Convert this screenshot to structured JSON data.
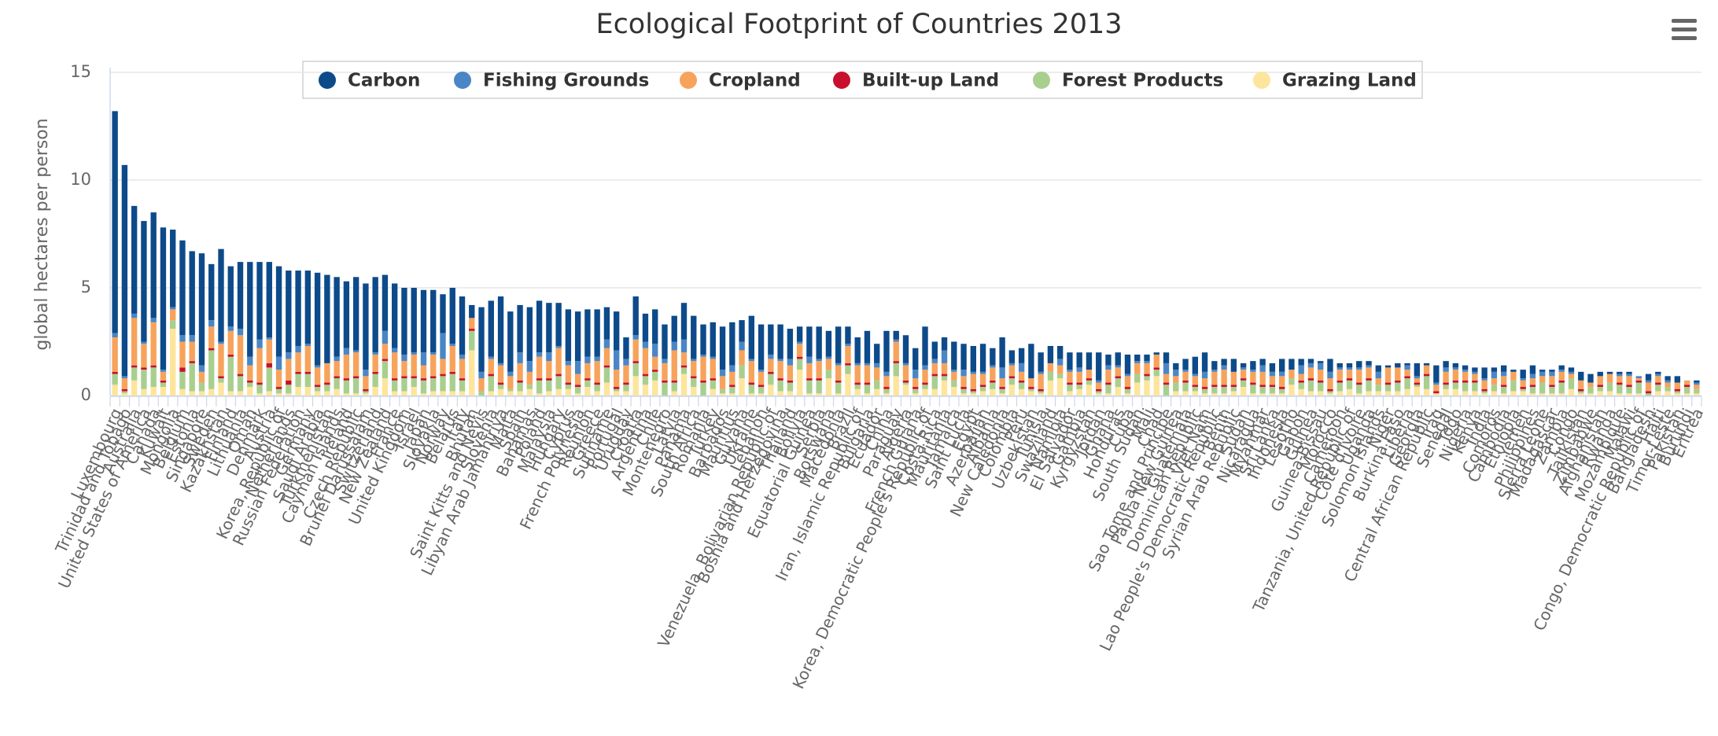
{
  "chart_data": {
    "type": "stacked_bar",
    "title": "Ecological Footprint of Countries 2013",
    "y_label": "global hectares per person",
    "ylim": [
      0,
      15
    ],
    "yticks": [
      0,
      5,
      10,
      15
    ],
    "grid": true,
    "categories": [
      "Luxembourg",
      "Trinidad and Tobago",
      "Australia",
      "United States of America",
      "Canada",
      "Kuwait",
      "Mongolia",
      "Belgium",
      "Estonia",
      "Singapore",
      "Sweden",
      "Kazakhstan",
      "Finland",
      "Lithuania",
      "Oman",
      "Denmark",
      "Austria",
      "Korea, Republic of",
      "Netherlands",
      "Russian Federation",
      "Germany",
      "Saudi Arabia",
      "Turkmenistan",
      "Cayman Islands",
      "Ireland",
      "Czech Republic",
      "Brunei Darussalam",
      "Switzerland",
      "New Zealand",
      "France",
      "United Kingdom",
      "Israel",
      "Japan",
      "Slovakia",
      "Norway",
      "Belarus",
      "Italy",
      "Bhutan",
      "Saint Kitts and Nevis",
      "Slovenia",
      "Libyan Arab Jamahiriya",
      "Malta",
      "Spain",
      "Bahamas",
      "Poland",
      "Malaysia",
      "Hungary",
      "Cyprus",
      "French Polynesia",
      "Reunion",
      "Greece",
      "Suriname",
      "Portugal",
      "Uruguay",
      "Croatia",
      "Argentina",
      "Chile",
      "Montenegro",
      "Latvia",
      "Panama",
      "South Africa",
      "Romania",
      "Turkey",
      "Barbados",
      "Mauritius",
      "Guyana",
      "Ukraine",
      "Lebanon",
      "Venezuela, Bolivarian Republic of",
      "Bosnia and Herzegovina",
      "Thailand",
      "Bolivia",
      "Equatorial Guinea",
      "Serbia",
      "Botswana",
      "Macedonia",
      "Brazil",
      "Iran, Islamic Republic of",
      "Bulgaria",
      "Ecuador",
      "China",
      "Paraguay",
      "Algeria",
      "French Guiana",
      "Korea, Democratic People's Republic of",
      "Costa Rica",
      "Mauritania",
      "Jamaica",
      "Saint Lucia",
      "Egypt",
      "Azerbaijan",
      "Albania",
      "New Caledonia",
      "Colombia",
      "Peru",
      "Uzbekistan",
      "Tunisia",
      "Swaziland",
      "Namibia",
      "El Salvador",
      "Gambia",
      "Kyrgyzstan",
      "Jordan",
      "Ghana",
      "Honduras",
      "Cuba",
      "South Sudan",
      "Mali",
      "Chad",
      "Sao Tome and Principe",
      "Papua New Guinea",
      "Guatemala",
      "Dominican Republic",
      "Viet Nam",
      "Lao People's Democratic Republic",
      "Benin",
      "Syrian Arab Republic",
      "Sudan",
      "Nicaragua",
      "Myanmar",
      "Sri Lanka",
      "Indonesia",
      "Lesotho",
      "Gabon",
      "Guinea",
      "Guinea-Bissau",
      "Morocco",
      "Cameroon",
      "Tanzania, United Republic of",
      "Côte d'Ivoire",
      "Uganda",
      "Solomon Islands",
      "Niger",
      "Burkina Faso",
      "Liberia",
      "Georgia",
      "Central African Republic",
      "Iraq",
      "Senegal",
      "Togo",
      "Nigeria",
      "Kenya",
      "India",
      "Comoros",
      "Cambodia",
      "Ethiopia",
      "Yemen",
      "Philippines",
      "Sierra Leone",
      "Madagascar",
      "Zambia",
      "Congo",
      "Tajikistan",
      "Zimbabwe",
      "Afghanistan",
      "Rwanda",
      "Mozambique",
      "Malawi",
      "Congo, Democratic Republic of",
      "Bangladesh",
      "Haiti",
      "Timor-Leste",
      "Pakistan",
      "Burundi",
      "Eritrea"
    ],
    "series": [
      {
        "name": "Carbon",
        "color": "#0d4a8a",
        "values": [
          10.3,
          9.8,
          5.0,
          5.6,
          4.9,
          6.6,
          3.6,
          4.4,
          3.9,
          5.2,
          2.6,
          4.3,
          2.8,
          3.1,
          4.4,
          3.6,
          3.5,
          4.2,
          3.8,
          3.5,
          3.4,
          4.3,
          4.1,
          3.7,
          3.1,
          3.4,
          4.0,
          3.5,
          2.6,
          3.0,
          3.1,
          3.0,
          2.9,
          2.9,
          1.8,
          2.6,
          2.7,
          0.6,
          3.0,
          2.6,
          3.1,
          2.8,
          2.2,
          2.5,
          2.4,
          2.3,
          2.0,
          2.4,
          2.3,
          2.2,
          2.2,
          1.5,
          1.8,
          1.0,
          1.8,
          1.3,
          1.6,
          1.6,
          1.2,
          1.7,
          2.0,
          1.4,
          1.6,
          2.0,
          2.0,
          1.0,
          2.0,
          2.1,
          1.4,
          1.6,
          1.4,
          0.7,
          1.4,
          1.5,
          1.2,
          1.7,
          0.8,
          1.2,
          1.5,
          0.9,
          1.9,
          0.4,
          1.3,
          1.0,
          1.8,
          0.8,
          0.6,
          1.3,
          1.2,
          1.2,
          1.3,
          0.8,
          1.4,
          0.6,
          0.7,
          1.6,
          0.9,
          0.8,
          0.6,
          0.8,
          0.7,
          0.8,
          1.3,
          0.5,
          0.6,
          0.9,
          0.3,
          0.3,
          0.1,
          0.5,
          0.3,
          0.5,
          0.8,
          0.9,
          0.4,
          0.3,
          0.6,
          0.2,
          0.4,
          0.3,
          0.4,
          0.6,
          0.5,
          0.3,
          0.2,
          0.1,
          0.6,
          0.2,
          0.2,
          0.3,
          0.2,
          0.3,
          0.1,
          0.2,
          0.1,
          0.6,
          0.1,
          0.8,
          0.3,
          0.2,
          0.2,
          0.2,
          0.5,
          0.2,
          0.3,
          0.1,
          0.4,
          0.4,
          0.1,
          0.1,
          0.2,
          0.2,
          0.4,
          0.4,
          0.2,
          0.1,
          0.1,
          0.1,
          0.0,
          0.3,
          0.1,
          0.2,
          0.3,
          0.0,
          0.1
        ]
      },
      {
        "name": "Fishing Grounds",
        "color": "#4a86c5",
        "values": [
          0.2,
          0.1,
          0.2,
          0.1,
          0.2,
          0.1,
          0.1,
          0.3,
          0.3,
          0.3,
          0.3,
          0.1,
          0.2,
          0.3,
          0.4,
          0.4,
          0.1,
          0.6,
          0.3,
          0.3,
          0.1,
          0.1,
          0.0,
          0.2,
          0.3,
          0.1,
          0.3,
          0.1,
          0.6,
          0.2,
          0.3,
          0.1,
          0.6,
          0.1,
          1.2,
          0.1,
          0.2,
          0.0,
          0.3,
          0.1,
          0.1,
          0.2,
          0.5,
          0.5,
          0.2,
          0.4,
          0.1,
          0.2,
          0.6,
          0.3,
          0.2,
          0.4,
          0.9,
          0.3,
          0.2,
          0.3,
          0.6,
          0.2,
          0.4,
          0.6,
          0.1,
          0.1,
          0.1,
          0.3,
          0.3,
          0.4,
          0.1,
          0.1,
          0.2,
          0.1,
          0.3,
          0.1,
          0.3,
          0.1,
          0.1,
          0.1,
          0.1,
          0.1,
          0.1,
          0.2,
          0.2,
          0.1,
          0.1,
          0.4,
          0.2,
          0.2,
          0.6,
          0.1,
          0.3,
          0.1,
          0.1,
          0.1,
          0.5,
          0.1,
          0.4,
          0.0,
          0.1,
          0.0,
          0.3,
          0.1,
          0.2,
          0.0,
          0.1,
          0.2,
          0.1,
          0.1,
          0.1,
          0.1,
          0.0,
          0.5,
          0.3,
          0.1,
          0.1,
          0.3,
          0.1,
          0.2,
          0.0,
          0.1,
          0.1,
          0.3,
          0.2,
          0.2,
          0.0,
          0.4,
          0.2,
          0.3,
          0.3,
          0.1,
          0.1,
          0.1,
          0.1,
          0.3,
          0.0,
          0.0,
          0.2,
          0.1,
          0.0,
          0.1,
          0.2,
          0.1,
          0.1,
          0.1,
          0.1,
          0.3,
          0.2,
          0.0,
          0.1,
          0.2,
          0.2,
          0.2,
          0.1,
          0.1,
          0.0,
          0.0,
          0.0,
          0.0,
          0.1,
          0.1,
          0.1,
          0.1,
          0.1,
          0.1,
          0.0,
          0.0,
          0.1
        ]
      },
      {
        "name": "Cropland",
        "color": "#f7a35c",
        "values": [
          1.6,
          0.5,
          2.2,
          1.1,
          2.0,
          0.4,
          0.5,
          1.2,
          0.9,
          0.5,
          1.0,
          1.5,
          1.1,
          1.8,
          0.7,
          1.6,
          1.1,
          0.8,
          1.0,
          0.9,
          1.2,
          0.8,
          0.9,
          0.7,
          1.1,
          1.1,
          0.6,
          0.8,
          0.7,
          1.2,
          0.7,
          1.0,
          0.6,
          1.0,
          0.7,
          1.2,
          0.9,
          0.5,
          0.6,
          0.7,
          0.8,
          0.6,
          0.8,
          0.6,
          1.0,
          0.8,
          1.2,
          0.8,
          0.5,
          0.7,
          1.0,
          0.8,
          0.8,
          0.8,
          1.0,
          1.2,
          0.6,
          0.8,
          1.4,
          0.6,
          0.7,
          1.1,
          0.9,
          0.6,
          0.6,
          0.7,
          1.0,
          0.6,
          0.6,
          0.8,
          0.7,
          0.6,
          0.7,
          0.8,
          0.5,
          0.7,
          0.8,
          0.8,
          0.8,
          0.6,
          0.5,
          0.9,
          0.7,
          0.4,
          0.6,
          0.5,
          0.5,
          0.4,
          0.5,
          0.7,
          0.5,
          0.6,
          0.4,
          0.5,
          0.4,
          0.4,
          0.7,
          0.4,
          0.4,
          0.5,
          0.5,
          0.4,
          0.3,
          0.6,
          0.4,
          0.5,
          0.5,
          0.5,
          0.6,
          0.4,
          0.3,
          0.4,
          0.4,
          0.4,
          0.6,
          0.7,
          0.6,
          0.4,
          0.5,
          0.6,
          0.4,
          0.5,
          0.4,
          0.3,
          0.5,
          0.5,
          0.5,
          0.5,
          0.4,
          0.6,
          0.5,
          0.3,
          0.7,
          0.6,
          0.3,
          0.2,
          0.4,
          0.3,
          0.5,
          0.5,
          0.4,
          0.3,
          0.4,
          0.3,
          0.4,
          0.4,
          0.3,
          0.3,
          0.3,
          0.4,
          0.4,
          0.2,
          0.4,
          0.2,
          0.4,
          0.4,
          0.3,
          0.4,
          0.1,
          0.4,
          0.3,
          0.2,
          0.3,
          0.2,
          0.2
        ]
      },
      {
        "name": "Built-up Land",
        "color": "#c8102e",
        "values": [
          0.1,
          0.1,
          0.1,
          0.1,
          0.1,
          0.1,
          0.0,
          0.2,
          0.1,
          0.0,
          0.1,
          0.1,
          0.1,
          0.1,
          0.1,
          0.1,
          0.2,
          0.1,
          0.2,
          0.1,
          0.1,
          0.1,
          0.1,
          0.1,
          0.1,
          0.1,
          0.1,
          0.1,
          0.1,
          0.1,
          0.1,
          0.1,
          0.1,
          0.1,
          0.1,
          0.1,
          0.1,
          0.1,
          0.0,
          0.1,
          0.1,
          0.0,
          0.1,
          0.0,
          0.1,
          0.1,
          0.1,
          0.1,
          0.1,
          0.1,
          0.1,
          0.1,
          0.1,
          0.1,
          0.1,
          0.1,
          0.1,
          0.1,
          0.1,
          0.1,
          0.1,
          0.1,
          0.1,
          0.0,
          0.1,
          0.0,
          0.1,
          0.1,
          0.1,
          0.1,
          0.1,
          0.1,
          0.1,
          0.1,
          0.0,
          0.1,
          0.1,
          0.1,
          0.1,
          0.0,
          0.1,
          0.1,
          0.1,
          0.1,
          0.1,
          0.1,
          0.1,
          0.0,
          0.1,
          0.1,
          0.1,
          0.1,
          0.1,
          0.1,
          0.1,
          0.1,
          0.1,
          0.0,
          0.0,
          0.1,
          0.1,
          0.1,
          0.1,
          0.1,
          0.1,
          0.1,
          0.0,
          0.1,
          0.1,
          0.1,
          0.0,
          0.1,
          0.1,
          0.1,
          0.1,
          0.1,
          0.1,
          0.1,
          0.1,
          0.1,
          0.1,
          0.1,
          0.0,
          0.1,
          0.1,
          0.1,
          0.1,
          0.1,
          0.1,
          0.1,
          0.1,
          0.0,
          0.1,
          0.1,
          0.1,
          0.1,
          0.1,
          0.1,
          0.1,
          0.1,
          0.1,
          0.1,
          0.1,
          0.0,
          0.1,
          0.0,
          0.1,
          0.1,
          0.0,
          0.1,
          0.1,
          0.0,
          0.1,
          0.0,
          0.1,
          0.0,
          0.1,
          0.1,
          0.1,
          0.1,
          0.1,
          0.0,
          0.1,
          0.1,
          0.0
        ]
      },
      {
        "name": "Forest Products",
        "color": "#a9cf8f",
        "values": [
          0.5,
          0.1,
          0.6,
          0.9,
          0.9,
          0.2,
          0.4,
          0.8,
          1.3,
          0.4,
          1.8,
          0.2,
          1.6,
          0.7,
          0.2,
          0.4,
          1.1,
          0.2,
          0.4,
          0.6,
          0.6,
          0.2,
          0.3,
          0.5,
          0.6,
          0.7,
          0.1,
          0.6,
          0.8,
          0.5,
          0.6,
          0.4,
          0.6,
          0.6,
          0.7,
          0.8,
          0.5,
          0.9,
          0.2,
          0.7,
          0.2,
          0.1,
          0.4,
          0.2,
          0.6,
          0.5,
          0.6,
          0.2,
          0.3,
          0.3,
          0.3,
          0.7,
          0.1,
          0.3,
          0.6,
          0.4,
          0.4,
          0.6,
          0.4,
          0.3,
          0.4,
          0.6,
          0.4,
          0.2,
          0.3,
          0.6,
          0.4,
          0.3,
          0.5,
          0.5,
          0.4,
          0.5,
          0.6,
          0.6,
          0.4,
          0.5,
          0.4,
          0.2,
          0.4,
          0.4,
          0.2,
          0.6,
          0.1,
          0.2,
          0.2,
          0.6,
          0.2,
          0.3,
          0.2,
          0.1,
          0.2,
          0.3,
          0.2,
          0.3,
          0.3,
          0.1,
          0.1,
          0.4,
          0.2,
          0.3,
          0.2,
          0.2,
          0.1,
          0.4,
          0.4,
          0.2,
          0.4,
          0.2,
          0.3,
          0.5,
          0.4,
          0.4,
          0.2,
          0.2,
          0.3,
          0.3,
          0.2,
          0.3,
          0.4,
          0.3,
          0.3,
          0.2,
          0.3,
          0.3,
          0.5,
          0.4,
          0.1,
          0.4,
          0.4,
          0.4,
          0.5,
          0.3,
          0.3,
          0.4,
          0.5,
          0.1,
          0.6,
          0.0,
          0.2,
          0.3,
          0.4,
          0.4,
          0.1,
          0.3,
          0.3,
          0.5,
          0.1,
          0.3,
          0.5,
          0.3,
          0.5,
          0.5,
          0.1,
          0.3,
          0.2,
          0.4,
          0.4,
          0.3,
          0.5,
          0.1,
          0.3,
          0.2,
          0.1,
          0.3,
          0.2
        ]
      },
      {
        "name": "Grazing Land",
        "color": "#fde59c",
        "values": [
          0.5,
          0.1,
          0.7,
          0.3,
          0.4,
          0.4,
          3.1,
          0.3,
          0.2,
          0.2,
          0.3,
          0.6,
          0.2,
          0.2,
          0.4,
          0.1,
          0.2,
          0.1,
          0.1,
          0.4,
          0.4,
          0.2,
          0.2,
          0.3,
          0.1,
          0.1,
          0.1,
          0.4,
          0.8,
          0.2,
          0.2,
          0.4,
          0.1,
          0.2,
          0.2,
          0.2,
          0.2,
          2.1,
          0.0,
          0.2,
          0.3,
          0.2,
          0.2,
          0.3,
          0.1,
          0.2,
          0.3,
          0.3,
          0.1,
          0.4,
          0.2,
          0.6,
          0.2,
          0.2,
          0.9,
          0.5,
          0.7,
          0.0,
          0.2,
          1.0,
          0.4,
          0.0,
          0.3,
          0.1,
          0.1,
          0.8,
          0.1,
          0.1,
          0.5,
          0.2,
          0.2,
          1.2,
          0.1,
          0.1,
          0.8,
          0.1,
          1.0,
          0.3,
          0.1,
          0.3,
          0.1,
          0.9,
          0.5,
          0.1,
          0.3,
          0.3,
          0.7,
          0.4,
          0.1,
          0.1,
          0.2,
          0.3,
          0.1,
          0.5,
          0.3,
          0.2,
          0.1,
          0.7,
          0.8,
          0.2,
          0.3,
          0.5,
          0.1,
          0.1,
          0.4,
          0.1,
          0.6,
          0.7,
          0.9,
          0.0,
          0.2,
          0.2,
          0.2,
          0.1,
          0.1,
          0.1,
          0.2,
          0.4,
          0.1,
          0.1,
          0.1,
          0.1,
          0.5,
          0.3,
          0.2,
          0.2,
          0.1,
          0.2,
          0.3,
          0.1,
          0.2,
          0.2,
          0.2,
          0.2,
          0.3,
          0.4,
          0.3,
          0.1,
          0.3,
          0.3,
          0.2,
          0.2,
          0.1,
          0.2,
          0.1,
          0.2,
          0.2,
          0.1,
          0.1,
          0.1,
          0.1,
          0.3,
          0.1,
          0.1,
          0.2,
          0.2,
          0.1,
          0.1,
          0.1,
          0.0,
          0.2,
          0.2,
          0.1,
          0.1,
          0.1
        ]
      }
    ]
  }
}
